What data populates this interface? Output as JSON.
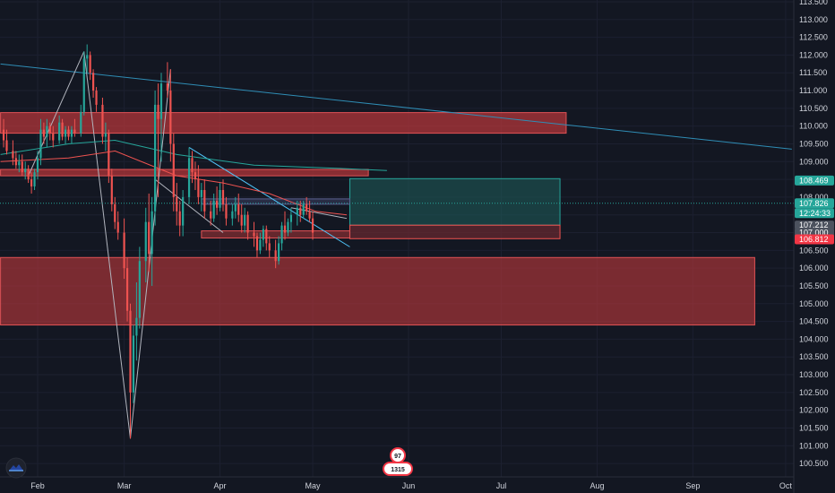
{
  "chart_data": {
    "type": "candlestick",
    "title": "",
    "xlabel": "",
    "ylabel": "",
    "ylim": [
      100.25,
      113.55
    ],
    "y_ticks": [
      "113.500",
      "113.000",
      "112.500",
      "112.000",
      "111.500",
      "111.000",
      "110.500",
      "110.000",
      "109.500",
      "109.000",
      "108.500",
      "108.000",
      "107.500",
      "107.000",
      "106.500",
      "106.000",
      "105.500",
      "105.000",
      "104.500",
      "104.000",
      "103.500",
      "103.000",
      "102.500",
      "102.000",
      "101.500",
      "101.000",
      "100.500"
    ],
    "x_ticks": [
      {
        "label": "Feb",
        "day": 0
      },
      {
        "label": "Mar",
        "day": 28
      },
      {
        "label": "Apr",
        "day": 59
      },
      {
        "label": "May",
        "day": 89
      },
      {
        "label": "Jun",
        "day": 120
      },
      {
        "label": "Jul",
        "day": 150
      },
      {
        "label": "Aug",
        "day": 181
      },
      {
        "label": "Sep",
        "day": 212
      },
      {
        "label": "Oct",
        "day": 242
      }
    ],
    "up_color": "#26a69a",
    "down_color": "#ef5350",
    "grid": true,
    "candles": [
      {
        "day": -11,
        "o": 109.9,
        "h": 110.2,
        "l": 109.4,
        "c": 109.6
      },
      {
        "day": -10,
        "o": 109.6,
        "h": 109.9,
        "l": 109.2,
        "c": 109.3
      },
      {
        "day": -8,
        "o": 109.3,
        "h": 109.6,
        "l": 108.9,
        "c": 109.1
      },
      {
        "day": -7,
        "o": 109.1,
        "h": 109.3,
        "l": 108.8,
        "c": 108.9
      },
      {
        "day": -6,
        "o": 108.9,
        "h": 109.2,
        "l": 108.7,
        "c": 109.0
      },
      {
        "day": -5,
        "o": 109.0,
        "h": 109.2,
        "l": 108.6,
        "c": 108.7
      },
      {
        "day": -4,
        "o": 108.7,
        "h": 109.0,
        "l": 108.5,
        "c": 108.8
      },
      {
        "day": -3,
        "o": 108.8,
        "h": 108.9,
        "l": 108.4,
        "c": 108.5
      },
      {
        "day": -2,
        "o": 108.5,
        "h": 108.7,
        "l": 108.1,
        "c": 108.3
      },
      {
        "day": -1,
        "o": 108.3,
        "h": 108.8,
        "l": 108.2,
        "c": 108.7
      },
      {
        "day": 0,
        "o": 108.7,
        "h": 109.3,
        "l": 108.5,
        "c": 109.1
      },
      {
        "day": 1,
        "o": 109.1,
        "h": 110.2,
        "l": 108.9,
        "c": 109.9
      },
      {
        "day": 2,
        "o": 109.9,
        "h": 110.1,
        "l": 109.5,
        "c": 109.7
      },
      {
        "day": 3,
        "o": 109.7,
        "h": 110.2,
        "l": 109.4,
        "c": 110.0
      },
      {
        "day": 4,
        "o": 110.0,
        "h": 110.1,
        "l": 109.6,
        "c": 109.8
      },
      {
        "day": 5,
        "o": 109.8,
        "h": 110.0,
        "l": 109.4,
        "c": 109.6
      },
      {
        "day": 7,
        "o": 109.6,
        "h": 110.3,
        "l": 109.5,
        "c": 110.1
      },
      {
        "day": 8,
        "o": 110.1,
        "h": 110.2,
        "l": 109.6,
        "c": 109.7
      },
      {
        "day": 9,
        "o": 109.7,
        "h": 110.0,
        "l": 109.5,
        "c": 109.9
      },
      {
        "day": 10,
        "o": 109.9,
        "h": 110.0,
        "l": 109.6,
        "c": 109.7
      },
      {
        "day": 11,
        "o": 109.7,
        "h": 110.0,
        "l": 109.5,
        "c": 109.9
      },
      {
        "day": 12,
        "o": 109.9,
        "h": 110.2,
        "l": 109.7,
        "c": 109.8
      },
      {
        "day": 14,
        "o": 109.8,
        "h": 110.6,
        "l": 109.7,
        "c": 110.4
      },
      {
        "day": 15,
        "o": 110.4,
        "h": 112.1,
        "l": 110.3,
        "c": 111.9
      },
      {
        "day": 16,
        "o": 111.9,
        "h": 112.3,
        "l": 111.5,
        "c": 112.0
      },
      {
        "day": 17,
        "o": 112.0,
        "h": 112.1,
        "l": 111.3,
        "c": 111.5
      },
      {
        "day": 18,
        "o": 111.5,
        "h": 111.6,
        "l": 110.8,
        "c": 111.0
      },
      {
        "day": 19,
        "o": 111.0,
        "h": 111.1,
        "l": 110.4,
        "c": 110.6
      },
      {
        "day": 21,
        "o": 110.6,
        "h": 110.8,
        "l": 109.5,
        "c": 109.7
      },
      {
        "day": 22,
        "o": 109.7,
        "h": 110.1,
        "l": 109.3,
        "c": 109.8
      },
      {
        "day": 23,
        "o": 109.8,
        "h": 109.9,
        "l": 108.4,
        "c": 108.6
      },
      {
        "day": 24,
        "o": 108.6,
        "h": 108.8,
        "l": 107.6,
        "c": 107.8
      },
      {
        "day": 25,
        "o": 107.8,
        "h": 108.0,
        "l": 107.1,
        "c": 107.3
      },
      {
        "day": 26,
        "o": 107.3,
        "h": 107.6,
        "l": 106.8,
        "c": 107.0
      },
      {
        "day": 28,
        "o": 107.0,
        "h": 107.4,
        "l": 105.7,
        "c": 106.0
      },
      {
        "day": 29,
        "o": 106.0,
        "h": 106.3,
        "l": 104.5,
        "c": 104.8
      },
      {
        "day": 30,
        "o": 104.8,
        "h": 105.0,
        "l": 101.2,
        "c": 102.5
      },
      {
        "day": 31,
        "o": 102.5,
        "h": 104.4,
        "l": 102.2,
        "c": 104.1
      },
      {
        "day": 32,
        "o": 104.1,
        "h": 105.6,
        "l": 103.4,
        "c": 104.6
      },
      {
        "day": 33,
        "o": 104.6,
        "h": 106.6,
        "l": 104.3,
        "c": 106.2
      },
      {
        "day": 35,
        "o": 106.2,
        "h": 107.7,
        "l": 105.6,
        "c": 107.3
      },
      {
        "day": 36,
        "o": 107.3,
        "h": 108.1,
        "l": 105.9,
        "c": 106.4
      },
      {
        "day": 37,
        "o": 106.4,
        "h": 108.0,
        "l": 105.5,
        "c": 107.6
      },
      {
        "day": 38,
        "o": 107.6,
        "h": 111.0,
        "l": 107.2,
        "c": 110.6
      },
      {
        "day": 39,
        "o": 110.6,
        "h": 111.2,
        "l": 108.0,
        "c": 110.2
      },
      {
        "day": 40,
        "o": 110.2,
        "h": 111.5,
        "l": 109.0,
        "c": 111.2
      },
      {
        "day": 42,
        "o": 111.2,
        "h": 111.8,
        "l": 110.8,
        "c": 111.0
      },
      {
        "day": 43,
        "o": 111.0,
        "h": 111.6,
        "l": 109.0,
        "c": 109.5
      },
      {
        "day": 44,
        "o": 109.5,
        "h": 109.8,
        "l": 107.6,
        "c": 108.0
      },
      {
        "day": 45,
        "o": 108.0,
        "h": 108.4,
        "l": 107.2,
        "c": 107.6
      },
      {
        "day": 46,
        "o": 107.6,
        "h": 107.9,
        "l": 106.9,
        "c": 107.2
      },
      {
        "day": 47,
        "o": 107.2,
        "h": 108.2,
        "l": 106.9,
        "c": 108.0
      },
      {
        "day": 49,
        "o": 108.0,
        "h": 109.4,
        "l": 107.8,
        "c": 109.1
      },
      {
        "day": 50,
        "o": 109.1,
        "h": 109.3,
        "l": 108.4,
        "c": 108.7
      },
      {
        "day": 51,
        "o": 108.7,
        "h": 109.0,
        "l": 108.2,
        "c": 108.5
      },
      {
        "day": 52,
        "o": 108.5,
        "h": 108.9,
        "l": 107.8,
        "c": 108.0
      },
      {
        "day": 53,
        "o": 108.0,
        "h": 108.4,
        "l": 107.6,
        "c": 108.2
      },
      {
        "day": 54,
        "o": 108.2,
        "h": 108.5,
        "l": 107.4,
        "c": 107.6
      },
      {
        "day": 56,
        "o": 107.6,
        "h": 107.9,
        "l": 107.2,
        "c": 107.4
      },
      {
        "day": 57,
        "o": 107.4,
        "h": 108.1,
        "l": 107.3,
        "c": 107.9
      },
      {
        "day": 58,
        "o": 107.9,
        "h": 108.3,
        "l": 107.5,
        "c": 107.7
      },
      {
        "day": 59,
        "o": 107.7,
        "h": 108.4,
        "l": 107.6,
        "c": 108.2
      },
      {
        "day": 60,
        "o": 108.2,
        "h": 108.5,
        "l": 107.6,
        "c": 107.8
      },
      {
        "day": 61,
        "o": 107.8,
        "h": 108.0,
        "l": 107.2,
        "c": 107.4
      },
      {
        "day": 63,
        "o": 107.4,
        "h": 107.8,
        "l": 107.2,
        "c": 107.6
      },
      {
        "day": 64,
        "o": 107.6,
        "h": 108.0,
        "l": 107.4,
        "c": 107.8
      },
      {
        "day": 65,
        "o": 107.8,
        "h": 108.1,
        "l": 107.3,
        "c": 107.5
      },
      {
        "day": 66,
        "o": 107.5,
        "h": 107.8,
        "l": 107.0,
        "c": 107.2
      },
      {
        "day": 67,
        "o": 107.2,
        "h": 107.7,
        "l": 107.0,
        "c": 107.5
      },
      {
        "day": 68,
        "o": 107.5,
        "h": 107.6,
        "l": 106.8,
        "c": 107.0
      },
      {
        "day": 70,
        "o": 107.0,
        "h": 107.3,
        "l": 106.6,
        "c": 106.9
      },
      {
        "day": 71,
        "o": 106.9,
        "h": 107.0,
        "l": 106.3,
        "c": 106.5
      },
      {
        "day": 72,
        "o": 106.5,
        "h": 107.0,
        "l": 106.4,
        "c": 106.8
      },
      {
        "day": 73,
        "o": 106.8,
        "h": 107.2,
        "l": 106.6,
        "c": 107.1
      },
      {
        "day": 74,
        "o": 107.1,
        "h": 107.2,
        "l": 106.5,
        "c": 106.7
      },
      {
        "day": 75,
        "o": 106.7,
        "h": 106.9,
        "l": 106.3,
        "c": 106.5
      },
      {
        "day": 77,
        "o": 106.5,
        "h": 106.8,
        "l": 106.0,
        "c": 106.2
      },
      {
        "day": 78,
        "o": 106.2,
        "h": 106.9,
        "l": 106.1,
        "c": 106.7
      },
      {
        "day": 79,
        "o": 106.7,
        "h": 107.3,
        "l": 106.5,
        "c": 107.2
      },
      {
        "day": 80,
        "o": 107.2,
        "h": 107.6,
        "l": 106.8,
        "c": 107.0
      },
      {
        "day": 81,
        "o": 107.0,
        "h": 107.4,
        "l": 106.9,
        "c": 107.3
      },
      {
        "day": 82,
        "o": 107.3,
        "h": 107.7,
        "l": 107.0,
        "c": 107.5
      },
      {
        "day": 84,
        "o": 107.5,
        "h": 107.9,
        "l": 107.2,
        "c": 107.7
      },
      {
        "day": 85,
        "o": 107.7,
        "h": 107.9,
        "l": 107.3,
        "c": 107.5
      },
      {
        "day": 86,
        "o": 107.5,
        "h": 107.9,
        "l": 107.4,
        "c": 107.8
      },
      {
        "day": 87,
        "o": 107.8,
        "h": 108.0,
        "l": 107.5,
        "c": 107.6
      },
      {
        "day": 88,
        "o": 107.6,
        "h": 107.9,
        "l": 107.3,
        "c": 107.4
      },
      {
        "day": 89,
        "o": 107.4,
        "h": 107.6,
        "l": 106.8,
        "c": 107.0
      }
    ]
  },
  "price_tags": {
    "target": {
      "label": "108.469",
      "color": "#26a69a"
    },
    "current": {
      "label": "107.826",
      "color": "#26a69a"
    },
    "countdown": {
      "label": "12:24:33",
      "color": "#26a69a"
    },
    "entry": {
      "label": "107.212",
      "color": "#4c525e"
    },
    "level": {
      "label": "107.000",
      "color": "#4c525e"
    },
    "stop": {
      "label": "106.812",
      "color": "#f23645"
    }
  },
  "icons": {
    "corner_logo": "mountain-cloud-icon",
    "event_badge": "event-badge-icon"
  },
  "event_badge": {
    "top_text": "97",
    "bottom_text": "1315"
  }
}
